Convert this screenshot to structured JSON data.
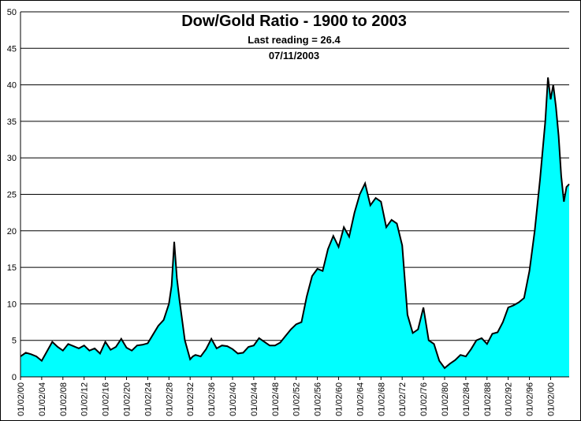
{
  "chart_data": {
    "type": "area",
    "title": "Dow/Gold Ratio - 1900 to 2003",
    "subtitle": "Last reading = 26.4",
    "date_label": "07/11/2003",
    "xlabel": "",
    "ylabel": "",
    "ylim": [
      0,
      50
    ],
    "yticks": [
      0,
      5,
      10,
      15,
      20,
      25,
      30,
      35,
      40,
      45,
      50
    ],
    "xlim": [
      1900,
      2003.5
    ],
    "xtick_labels": [
      "01/02/00",
      "01/02/04",
      "01/02/08",
      "01/02/12",
      "01/02/16",
      "01/02/20",
      "01/02/24",
      "01/02/28",
      "01/02/32",
      "01/02/36",
      "01/02/40",
      "01/02/44",
      "01/02/48",
      "01/02/52",
      "01/02/56",
      "01/02/60",
      "01/02/64",
      "01/02/68",
      "01/02/72",
      "01/02/76",
      "01/02/80",
      "01/02/84",
      "01/02/88",
      "01/02/92",
      "01/02/96",
      "01/02/00"
    ],
    "xtick_years": [
      1900,
      1904,
      1908,
      1912,
      1916,
      1920,
      1924,
      1928,
      1932,
      1936,
      1940,
      1944,
      1948,
      1952,
      1956,
      1960,
      1964,
      1968,
      1972,
      1976,
      1980,
      1984,
      1988,
      1992,
      1996,
      2000
    ],
    "fill_color": "#00FFFF",
    "line_color": "#000000",
    "series": [
      {
        "name": "Dow/Gold Ratio",
        "x": [
          1900,
          1901,
          1902,
          1903,
          1904,
          1905,
          1906,
          1907,
          1908,
          1909,
          1910,
          1911,
          1912,
          1913,
          1914,
          1915,
          1916,
          1917,
          1918,
          1919,
          1920,
          1921,
          1922,
          1923,
          1924,
          1925,
          1926,
          1927,
          1928,
          1928.5,
          1929,
          1929.5,
          1930,
          1931,
          1932,
          1932.5,
          1933,
          1934,
          1935,
          1936,
          1937,
          1938,
          1939,
          1940,
          1941,
          1942,
          1943,
          1944,
          1945,
          1946,
          1947,
          1948,
          1949,
          1950,
          1951,
          1952,
          1953,
          1954,
          1955,
          1956,
          1957,
          1958,
          1959,
          1960,
          1961,
          1962,
          1963,
          1964,
          1965,
          1966,
          1967,
          1968,
          1969,
          1970,
          1971,
          1972,
          1973,
          1974,
          1975,
          1976,
          1977,
          1978,
          1979,
          1980,
          1981,
          1982,
          1983,
          1984,
          1985,
          1986,
          1987,
          1988,
          1989,
          1990,
          1991,
          1992,
          1993,
          1994,
          1995,
          1996,
          1997,
          1998,
          1999,
          1999.5,
          2000,
          2000.5,
          2001,
          2001.5,
          2002,
          2002.5,
          2003,
          2003.5
        ],
        "values": [
          2.8,
          3.3,
          3.1,
          2.8,
          2.2,
          3.5,
          4.8,
          4.1,
          3.6,
          4.5,
          4.2,
          3.9,
          4.3,
          3.6,
          3.9,
          3.2,
          4.8,
          3.7,
          4.1,
          5.2,
          4.0,
          3.6,
          4.3,
          4.4,
          4.6,
          5.8,
          7.0,
          7.8,
          10.0,
          12.5,
          18.5,
          13.5,
          10.5,
          5.0,
          2.4,
          2.8,
          3.0,
          2.8,
          3.8,
          5.2,
          3.9,
          4.3,
          4.2,
          3.8,
          3.2,
          3.3,
          4.1,
          4.3,
          5.3,
          4.8,
          4.3,
          4.3,
          4.7,
          5.6,
          6.5,
          7.2,
          7.5,
          11.0,
          13.8,
          14.8,
          14.5,
          17.5,
          19.3,
          17.8,
          20.5,
          19.2,
          22.5,
          25.0,
          26.5,
          23.5,
          24.5,
          24.0,
          20.5,
          21.5,
          21.0,
          18.0,
          8.5,
          6.0,
          6.5,
          9.5,
          5.0,
          4.5,
          2.2,
          1.2,
          1.8,
          2.3,
          3.0,
          2.8,
          3.8,
          5.0,
          5.3,
          4.5,
          5.9,
          6.1,
          7.5,
          9.5,
          9.8,
          10.2,
          10.8,
          14.5,
          20.0,
          27.0,
          35.0,
          41.0,
          38.0,
          40.0,
          37.0,
          33.0,
          27.5,
          24.0,
          26.0,
          26.4
        ]
      }
    ]
  }
}
